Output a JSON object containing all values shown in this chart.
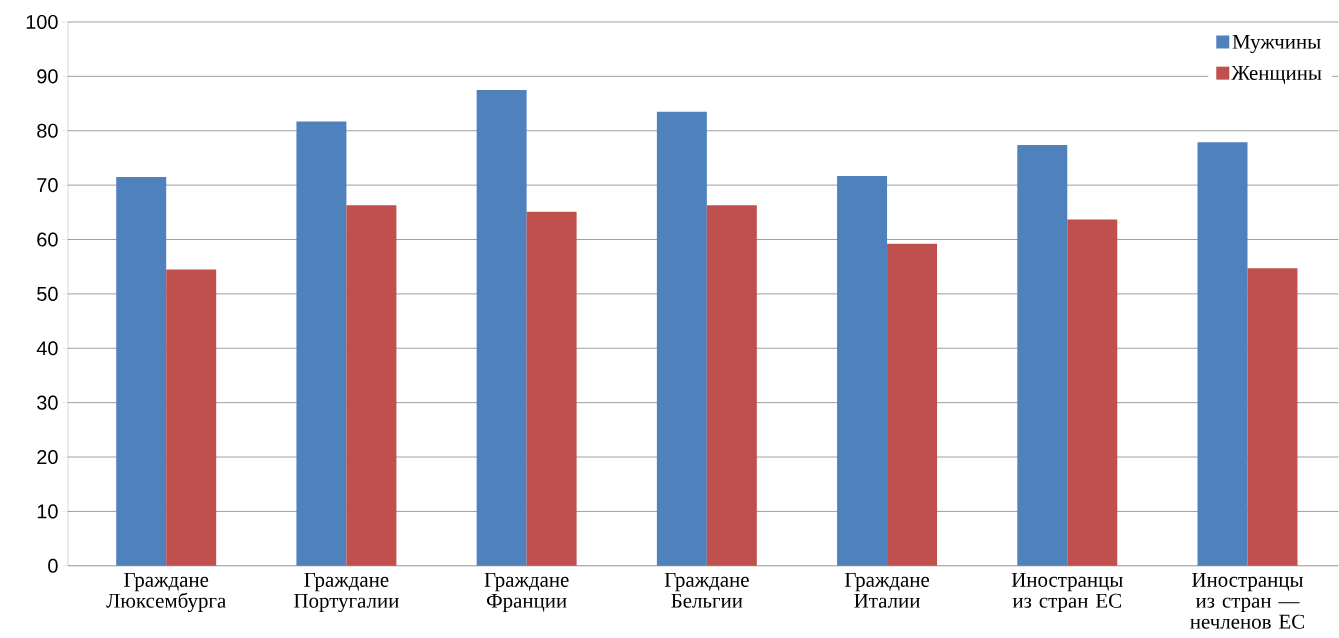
{
  "chart_data": {
    "type": "bar",
    "categories": [
      "Граждане Люксембурга",
      "Граждане Португалии",
      "Граждане Франции",
      "Граждане Бельгии",
      "Граждане Италии",
      "Иностранцы из стран ЕС",
      "Иностранцы из стран — нечленов ЕС"
    ],
    "series": [
      {
        "name": "Мужчины",
        "color": "#4f81bd",
        "values": [
          71.5,
          81.7,
          87.5,
          83.5,
          71.7,
          77.4,
          77.9
        ]
      },
      {
        "name": "Женщины",
        "color": "#c0504d",
        "values": [
          54.5,
          66.3,
          65.1,
          66.3,
          59.2,
          63.7,
          54.7
        ]
      }
    ],
    "ylim": [
      0,
      100
    ],
    "yticks": [
      0,
      10,
      20,
      30,
      40,
      50,
      60,
      70,
      80,
      90,
      100
    ],
    "grid": "y",
    "legend": "top right"
  }
}
